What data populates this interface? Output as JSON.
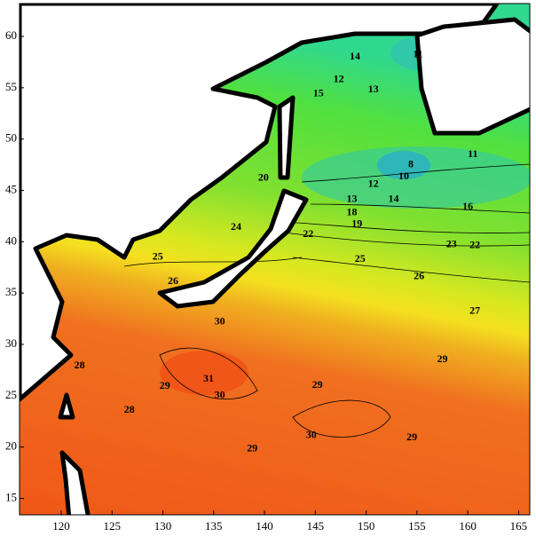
{
  "axes": {
    "x": {
      "lim": [
        115.9,
        166.1
      ],
      "ticks": [
        120,
        125,
        130,
        135,
        140,
        145,
        150,
        155,
        160,
        165
      ]
    },
    "y": {
      "lim": [
        13.4,
        63.2
      ],
      "ticks": [
        15,
        20,
        25,
        30,
        35,
        40,
        45,
        50,
        55,
        60
      ]
    }
  },
  "contour_labels": [
    {
      "text": "14",
      "lon": 148.9,
      "lat": 58.0
    },
    {
      "text": "11",
      "lon": 155.1,
      "lat": 58.2
    },
    {
      "text": "12",
      "lon": 147.3,
      "lat": 55.8
    },
    {
      "text": "13",
      "lon": 150.7,
      "lat": 54.8
    },
    {
      "text": "15",
      "lon": 145.3,
      "lat": 54.4
    },
    {
      "text": "11",
      "lon": 160.5,
      "lat": 48.5
    },
    {
      "text": "8",
      "lon": 154.4,
      "lat": 47.5
    },
    {
      "text": "10",
      "lon": 153.7,
      "lat": 46.3
    },
    {
      "text": "12",
      "lon": 150.7,
      "lat": 45.6
    },
    {
      "text": "13",
      "lon": 148.6,
      "lat": 44.1
    },
    {
      "text": "14",
      "lon": 152.7,
      "lat": 44.1
    },
    {
      "text": "16",
      "lon": 160.0,
      "lat": 43.4
    },
    {
      "text": "18",
      "lon": 148.6,
      "lat": 42.8
    },
    {
      "text": "19",
      "lon": 149.1,
      "lat": 41.7
    },
    {
      "text": "20",
      "lon": 139.9,
      "lat": 46.2
    },
    {
      "text": "24",
      "lon": 137.2,
      "lat": 41.4
    },
    {
      "text": "22",
      "lon": 144.3,
      "lat": 40.7
    },
    {
      "text": "23",
      "lon": 158.4,
      "lat": 39.7
    },
    {
      "text": "22",
      "lon": 160.7,
      "lat": 39.6
    },
    {
      "text": "25",
      "lon": 129.5,
      "lat": 38.5
    },
    {
      "text": "25",
      "lon": 149.4,
      "lat": 38.3
    },
    {
      "text": "26",
      "lon": 155.2,
      "lat": 36.6
    },
    {
      "text": "26",
      "lon": 131.0,
      "lat": 36.1
    },
    {
      "text": "27",
      "lon": 160.7,
      "lat": 33.2
    },
    {
      "text": "30",
      "lon": 135.6,
      "lat": 32.2
    },
    {
      "text": "28",
      "lon": 121.8,
      "lat": 27.9
    },
    {
      "text": "31",
      "lon": 134.5,
      "lat": 26.6
    },
    {
      "text": "29",
      "lon": 130.2,
      "lat": 25.9
    },
    {
      "text": "29",
      "lon": 145.2,
      "lat": 26.0
    },
    {
      "text": "30",
      "lon": 135.6,
      "lat": 25.0
    },
    {
      "text": "29",
      "lon": 157.5,
      "lat": 28.5
    },
    {
      "text": "28",
      "lon": 126.7,
      "lat": 23.6
    },
    {
      "text": "30",
      "lon": 144.6,
      "lat": 21.1
    },
    {
      "text": "29",
      "lon": 154.5,
      "lat": 20.9
    },
    {
      "text": "29",
      "lon": 138.8,
      "lat": 19.8
    }
  ]
}
